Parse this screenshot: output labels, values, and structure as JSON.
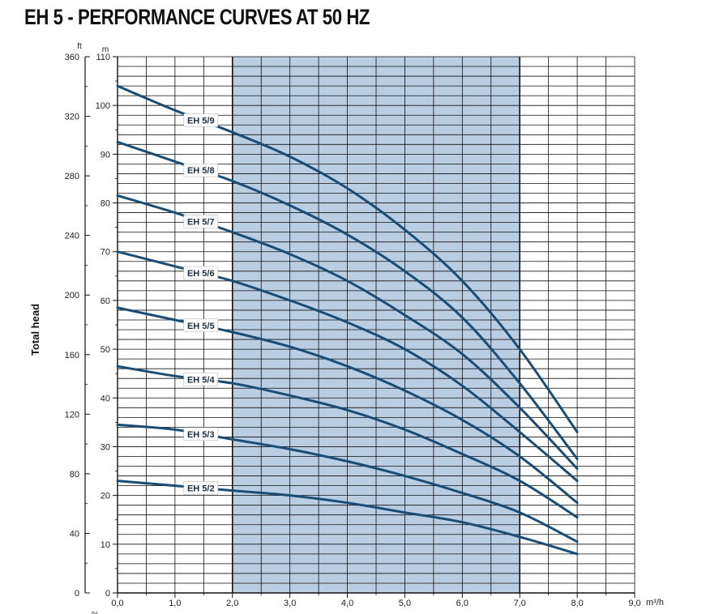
{
  "chart_data": {
    "type": "line",
    "title": "EH 5 - PERFORMANCE CURVES AT 50 HZ",
    "ylabel": "Total head",
    "y_unit": "m",
    "y2_unit": "ft",
    "x_unit": "m³/h",
    "xlim": [
      0,
      9
    ],
    "ylim": [
      0,
      110
    ],
    "y2lim": [
      0,
      360
    ],
    "x_ticks": [
      "0,0",
      "1,0",
      "2,0",
      "3,0",
      "4,0",
      "5,0",
      "6,0",
      "7,0",
      "8,0",
      "9,0"
    ],
    "y_ticks": [
      0,
      10,
      20,
      30,
      40,
      50,
      60,
      70,
      80,
      90,
      100,
      110
    ],
    "y2_ticks": [
      0,
      40,
      80,
      120,
      160,
      200,
      240,
      280,
      320,
      360
    ],
    "grid": true,
    "recommended_range": [
      2,
      7
    ],
    "bottom_partial_label": "%",
    "colors": {
      "curve": "#1b4d74",
      "band": "#b9cde3",
      "grid": "#111111"
    },
    "series": [
      {
        "name": "EH 5/9",
        "x": [
          0,
          1,
          2,
          3,
          4,
          5,
          6,
          7,
          8
        ],
        "y": [
          104,
          99,
          94.5,
          89.5,
          83,
          74.5,
          64,
          50,
          33
        ]
      },
      {
        "name": "EH 5/8",
        "x": [
          0,
          1,
          2,
          3,
          4,
          5,
          6,
          7,
          8
        ],
        "y": [
          92.5,
          88.5,
          84.5,
          79.5,
          73.5,
          66,
          56.5,
          43,
          27.5
        ]
      },
      {
        "name": "EH 5/7",
        "x": [
          0,
          1,
          2,
          3,
          4,
          5,
          6,
          7,
          8
        ],
        "y": [
          81.5,
          78,
          74,
          69.5,
          64,
          57,
          49,
          38,
          25.5
        ]
      },
      {
        "name": "EH 5/6",
        "x": [
          0,
          1,
          2,
          3,
          4,
          5,
          6,
          7,
          8
        ],
        "y": [
          70,
          67,
          64,
          60,
          55.5,
          50,
          42.5,
          33,
          23
        ]
      },
      {
        "name": "EH 5/5",
        "x": [
          0,
          1,
          2,
          3,
          4,
          5,
          6,
          7,
          8
        ],
        "y": [
          58.5,
          56,
          53.5,
          50.5,
          46.5,
          41.5,
          35.5,
          28,
          18.5
        ]
      },
      {
        "name": "EH 5/4",
        "x": [
          0,
          1,
          2,
          3,
          4,
          5,
          6,
          7,
          8
        ],
        "y": [
          46.5,
          44.5,
          43,
          40.5,
          37.5,
          33.5,
          28.5,
          23,
          15.5
        ]
      },
      {
        "name": "EH 5/3",
        "x": [
          0,
          1,
          2,
          3,
          4,
          5,
          6,
          7,
          8
        ],
        "y": [
          34.5,
          33.5,
          31.5,
          29.5,
          27,
          24,
          20.5,
          16.5,
          10.5
        ]
      },
      {
        "name": "EH 5/2",
        "x": [
          0,
          1,
          2,
          3,
          4,
          5,
          6,
          7,
          8
        ],
        "y": [
          23,
          22,
          21,
          20,
          18.5,
          16.5,
          14.5,
          11.5,
          8
        ]
      }
    ]
  }
}
